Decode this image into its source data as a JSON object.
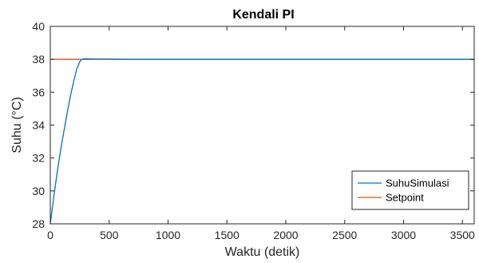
{
  "chart_data": {
    "type": "line",
    "title": "Kendali PI",
    "xlabel": "Waktu (detik)",
    "ylabel": "Suhu (°C)",
    "xlim": [
      0,
      3600
    ],
    "ylim": [
      28,
      40
    ],
    "x_ticks": [
      0,
      500,
      1000,
      1500,
      2000,
      2500,
      3000,
      3500
    ],
    "x_tick_labels": [
      "0",
      "500",
      "1000",
      "1500",
      "2000",
      "2500",
      "3000",
      "3500"
    ],
    "y_ticks": [
      28,
      30,
      32,
      34,
      36,
      38,
      40
    ],
    "y_tick_labels": [
      "28",
      "30",
      "32",
      "34",
      "36",
      "38",
      "40"
    ],
    "grid": false,
    "legend_position": "lower-right",
    "series": [
      {
        "name": "SuhuSimulasi",
        "color": "#0072BD",
        "x": [
          0,
          25,
          50,
          75,
          100,
          125,
          150,
          175,
          200,
          225,
          250,
          265,
          280,
          300,
          350,
          500,
          700,
          1000,
          2000,
          3000,
          3600
        ],
        "y": [
          28.0,
          29.4,
          30.7,
          31.9,
          33.0,
          34.0,
          35.0,
          35.9,
          36.7,
          37.4,
          37.85,
          37.98,
          38.02,
          38.03,
          38.02,
          38.01,
          38.0,
          38.0,
          38.0,
          38.0,
          38.0
        ]
      },
      {
        "name": "Setpoint",
        "color": "#D95319",
        "x": [
          0,
          3600
        ],
        "y": [
          38,
          38
        ]
      }
    ]
  }
}
